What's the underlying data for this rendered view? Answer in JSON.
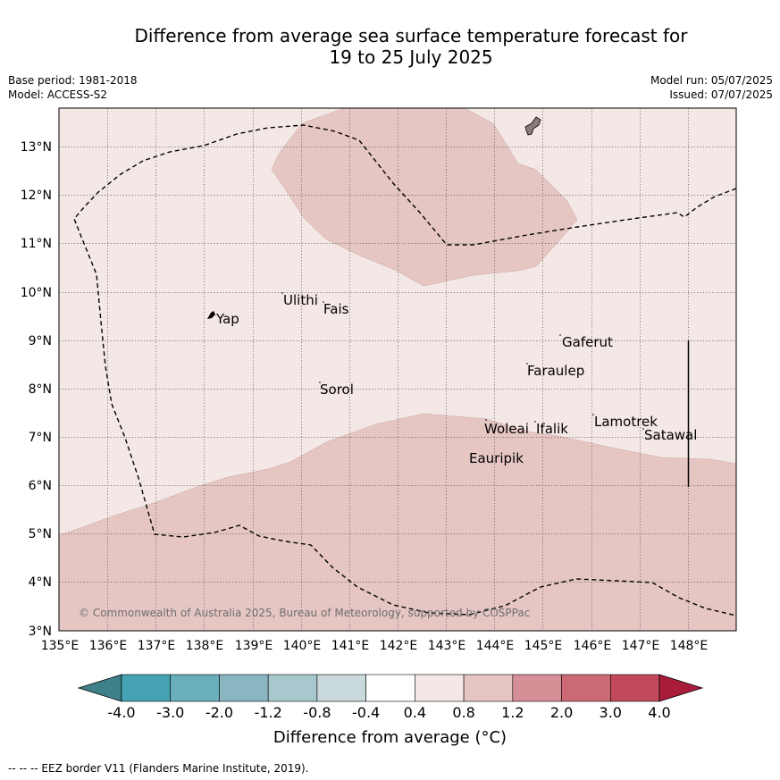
{
  "header": {
    "title_line1": "Difference from average sea surface temperature forecast for",
    "title_line2": "19 to 25 July 2025",
    "base_period": "Base period: 1981-2018",
    "model": "Model: ACCESS-S2",
    "model_run": "Model run: 05/07/2025",
    "issued": "Issued: 07/07/2025"
  },
  "map": {
    "lon_ticks": [
      "135°E",
      "136°E",
      "137°E",
      "138°E",
      "139°E",
      "140°E",
      "141°E",
      "142°E",
      "143°E",
      "144°E",
      "145°E",
      "146°E",
      "147°E",
      "148°E"
    ],
    "lat_ticks": [
      "13°N",
      "12°N",
      "11°N",
      "10°N",
      "9°N",
      "8°N",
      "7°N",
      "6°N",
      "5°N",
      "4°N",
      "3°N"
    ],
    "islands": [
      {
        "name": "Yap"
      },
      {
        "name": "Ulithi"
      },
      {
        "name": "Fais"
      },
      {
        "name": "Gaferut"
      },
      {
        "name": "Faraulep"
      },
      {
        "name": "Sorol"
      },
      {
        "name": "Lamotrek"
      },
      {
        "name": "Satawal"
      },
      {
        "name": "Woleai"
      },
      {
        "name": "Ifalik"
      },
      {
        "name": "Eauripik"
      }
    ],
    "copyright": "© Commonwealth of Australia 2025, Bureau of Meteorology, supported by COSPPac",
    "colors": {
      "background_band": "#f4e8e6",
      "warm_band": "#e6c6c2",
      "border": "#000000"
    }
  },
  "colorbar": {
    "ticks": [
      "-4.0",
      "-3.0",
      "-2.0",
      "-1.2",
      "-0.8",
      "-0.4",
      "0.4",
      "0.8",
      "1.2",
      "2.0",
      "3.0",
      "4.0"
    ],
    "colors": [
      "#3f7f87",
      "#45a2b2",
      "#68aebb",
      "#89b6c1",
      "#a9c8ce",
      "#c9d9dc",
      "#ffffff",
      "#f4e8e6",
      "#e6c6c2",
      "#d58f96",
      "#cb6a75",
      "#c04a5a",
      "#a81c3a"
    ],
    "label": "Difference from average (°C)"
  },
  "footer": "-- -- -- EEZ border V11 (Flanders Marine Institute, 2019)."
}
